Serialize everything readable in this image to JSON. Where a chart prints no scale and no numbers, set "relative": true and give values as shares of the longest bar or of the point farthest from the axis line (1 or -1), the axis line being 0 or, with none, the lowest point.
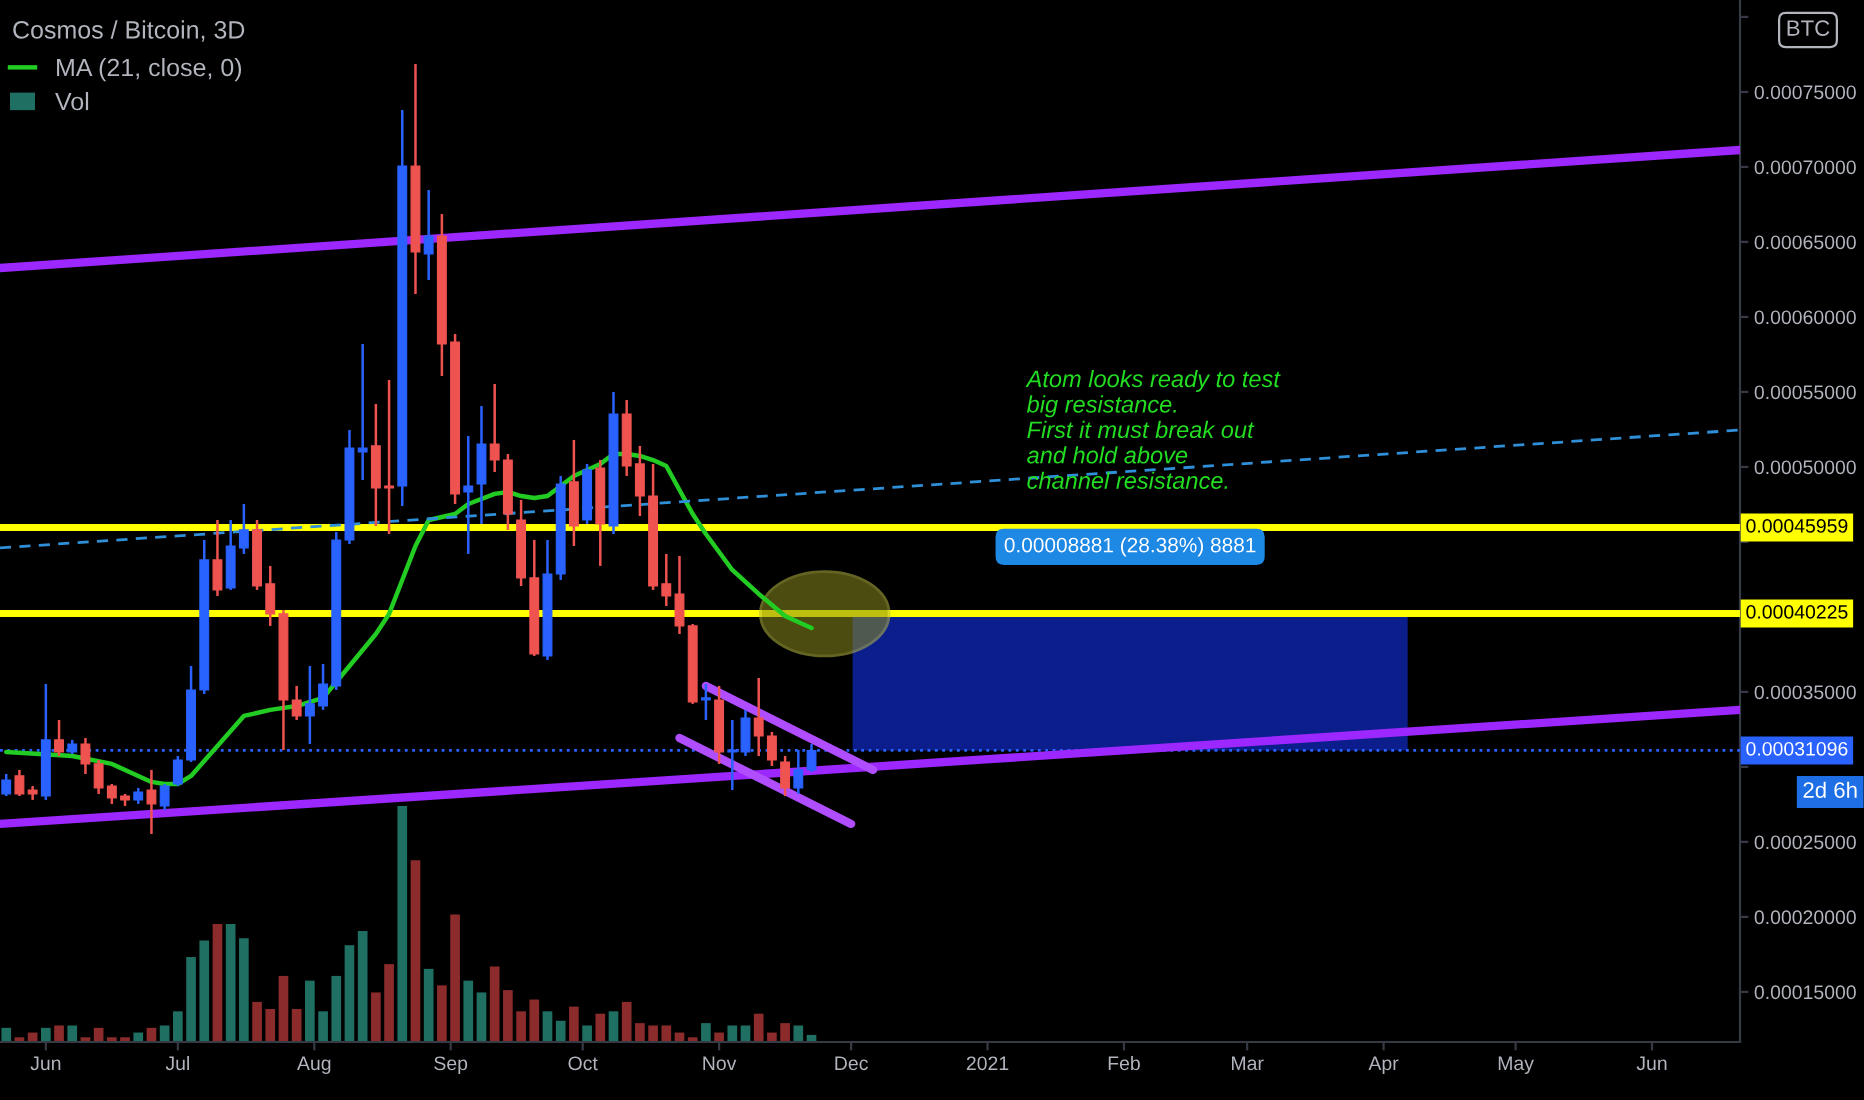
{
  "chart_data": [
    {
      "type": "candlestick",
      "title": "Cosmos / Bitcoin, 3D",
      "x": [
        "2020-05-23",
        "2020-05-26",
        "2020-05-29",
        "2020-06-01",
        "2020-06-04",
        "2020-06-07",
        "2020-06-10",
        "2020-06-13",
        "2020-06-16",
        "2020-06-19",
        "2020-06-22",
        "2020-06-25",
        "2020-06-28",
        "2020-07-01",
        "2020-07-04",
        "2020-07-07",
        "2020-07-10",
        "2020-07-13",
        "2020-07-16",
        "2020-07-19",
        "2020-07-22",
        "2020-07-25",
        "2020-07-28",
        "2020-07-31",
        "2020-08-03",
        "2020-08-06",
        "2020-08-09",
        "2020-08-12",
        "2020-08-15",
        "2020-08-18",
        "2020-08-21",
        "2020-08-24",
        "2020-08-27",
        "2020-08-30",
        "2020-09-02",
        "2020-09-05",
        "2020-09-08",
        "2020-09-11",
        "2020-09-14",
        "2020-09-17",
        "2020-09-20",
        "2020-09-23",
        "2020-09-26",
        "2020-09-29",
        "2020-10-02",
        "2020-10-05",
        "2020-10-08",
        "2020-10-11",
        "2020-10-14",
        "2020-10-17",
        "2020-10-20",
        "2020-10-23",
        "2020-10-26",
        "2020-10-29",
        "2020-11-01",
        "2020-11-04",
        "2020-11-07",
        "2020-11-10",
        "2020-11-13",
        "2020-11-16",
        "2020-11-19",
        "2020-11-22"
      ],
      "ohlc": [
        [
          0.000282,
          0.0002953,
          0.0002806,
          0.0002913
        ],
        [
          0.000294,
          0.000298,
          0.0002806,
          0.000282
        ],
        [
          0.0002846,
          0.0002873,
          0.000278,
          0.000282
        ],
        [
          0.0002806,
          0.0003553,
          0.000278,
          0.000318
        ],
        [
          0.000318,
          0.0003313,
          0.0003073,
          0.00031
        ],
        [
          0.00031,
          0.000318,
          0.0003086,
          0.0003153
        ],
        [
          0.0003153,
          0.0003193,
          0.0002953,
          0.000302
        ],
        [
          0.000302,
          0.0003046,
          0.000282,
          0.000286
        ],
        [
          0.0002873,
          0.0002886,
          0.0002753,
          0.0002793
        ],
        [
          0.0002806,
          0.000282,
          0.000274,
          0.000278
        ],
        [
          0.000278,
          0.000286,
          0.0002753,
          0.0002833
        ],
        [
          0.0002846,
          0.000298,
          0.0002553,
          0.0002753
        ],
        [
          0.000274,
          0.0002886,
          0.0002713,
          0.0002873
        ],
        [
          0.0002886,
          0.0003073,
          0.0002873,
          0.0003046
        ],
        [
          0.0003046,
          0.0003673,
          0.0003033,
          0.0003513
        ],
        [
          0.0003513,
          0.0004513,
          0.0003486,
          0.000438
        ],
        [
          0.000438,
          0.0004646,
          0.000414,
          0.000418
        ],
        [
          0.0004193,
          0.0004646,
          0.000418,
          0.0004473
        ],
        [
          0.000446,
          0.0004753,
          0.000442,
          0.000458
        ],
        [
          0.000458,
          0.0004646,
          0.000418,
          0.0004206
        ],
        [
          0.000422,
          0.000434,
          0.000394,
          0.000402
        ],
        [
          0.000402,
          0.0004046,
          0.0003113,
          0.0003446
        ],
        [
          0.0003446,
          0.000354,
          0.0003313,
          0.000334
        ],
        [
          0.000334,
          0.0003673,
          0.0003153,
          0.000342
        ],
        [
          0.0003406,
          0.0003686,
          0.000338,
          0.0003553
        ],
        [
          0.000354,
          0.0004566,
          0.0003513,
          0.0004513
        ],
        [
          0.0004513,
          0.0005246,
          0.0004486,
          0.0005126
        ],
        [
          0.00051,
          0.000582,
          0.0004913,
          0.0005126
        ],
        [
          0.000514,
          0.000542,
          0.0004606,
          0.000486
        ],
        [
          0.0004873,
          0.000558,
          0.0004553,
          0.000486
        ],
        [
          0.0004873,
          0.000738,
          0.000474,
          0.0007006
        ],
        [
          0.0007006,
          0.0007686,
          0.0006153,
          0.0006433
        ],
        [
          0.000642,
          0.0006846,
          0.0006246,
          0.000654
        ],
        [
          0.000654,
          0.0006686,
          0.0005606,
          0.000582
        ],
        [
          0.0005833,
          0.0005886,
          0.0004753,
          0.000482
        ],
        [
          0.0004833,
          0.0005206,
          0.000442,
          0.0004873
        ],
        [
          0.0004886,
          0.0005406,
          0.000462,
          0.0005153
        ],
        [
          0.0005153,
          0.0005553,
          0.0004966,
          0.0005046
        ],
        [
          0.0005046,
          0.0005086,
          0.000458,
          0.0004686
        ],
        [
          0.0004646,
          0.000478,
          0.0004206,
          0.000426
        ],
        [
          0.000426,
          0.0004513,
          0.000374,
          0.0003753
        ],
        [
          0.000374,
          0.0004513,
          0.0003713,
          0.0004286
        ],
        [
          0.0004286,
          0.000494,
          0.0004246,
          0.0004886
        ],
        [
          0.00049,
          0.000518,
          0.0004473,
          0.0004606
        ],
        [
          0.0004646,
          0.000502,
          0.000462,
          0.000498
        ],
        [
          0.0004993,
          0.0005046,
          0.000434,
          0.000462
        ],
        [
          0.0004606,
          0.00055,
          0.0004553,
          0.0005353
        ],
        [
          0.0005353,
          0.0005446,
          0.000494,
          0.0005006
        ],
        [
          0.000502,
          0.000514,
          0.0004673,
          0.0004806
        ],
        [
          0.0004806,
          0.000502,
          0.000418,
          0.0004206
        ],
        [
          0.000422,
          0.000442,
          0.0004073,
          0.000414
        ],
        [
          0.0004153,
          0.0004406,
          0.0003886,
          0.000394
        ],
        [
          0.000394,
          0.0003953,
          0.000342,
          0.0003433
        ],
        [
          0.0003446,
          0.0003553,
          0.0003313,
          0.000346
        ],
        [
          0.0003446,
          0.000354,
          0.000302,
          0.00031
        ],
        [
          0.00031,
          0.0003313,
          0.0002846,
          0.0003113
        ],
        [
          0.00031,
          0.000338,
          0.0003073,
          0.0003326
        ],
        [
          0.0003326,
          0.0003593,
          0.0003073,
          0.0003206
        ],
        [
          0.0003206,
          0.0003233,
          0.0003006,
          0.0003046
        ],
        [
          0.0003033,
          0.0003073,
          0.0002806,
          0.000286
        ],
        [
          0.000286,
          0.0003113,
          0.000282,
          0.000298
        ],
        [
          0.000298,
          0.0003153,
          0.0002966,
          0.00031096
        ]
      ],
      "colors": [
        "#2962ff",
        "#ef5350",
        "#ef5350",
        "#2962ff",
        "#ef5350",
        "#2962ff",
        "#ef5350",
        "#ef5350",
        "#ef5350",
        "#ef5350",
        "#2962ff",
        "#ef5350",
        "#2962ff",
        "#2962ff",
        "#2962ff",
        "#2962ff",
        "#ef5350",
        "#2962ff",
        "#2962ff",
        "#ef5350",
        "#ef5350",
        "#ef5350",
        "#ef5350",
        "#2962ff",
        "#2962ff",
        "#2962ff",
        "#2962ff",
        "#2962ff",
        "#ef5350",
        "#ef5350",
        "#2962ff",
        "#ef5350",
        "#2962ff",
        "#ef5350",
        "#ef5350",
        "#2962ff",
        "#2962ff",
        "#ef5350",
        "#ef5350",
        "#ef5350",
        "#ef5350",
        "#2962ff",
        "#2962ff",
        "#ef5350",
        "#2962ff",
        "#ef5350",
        "#2962ff",
        "#ef5350",
        "#ef5350",
        "#ef5350",
        "#ef5350",
        "#ef5350",
        "#ef5350",
        "#2962ff",
        "#ef5350",
        "#2962ff",
        "#2962ff",
        "#ef5350",
        "#ef5350",
        "#ef5350",
        "#2962ff",
        "#2962ff"
      ],
      "series": [
        {
          "name": "MA (21, close, 0)",
          "type": "line",
          "color": "#22cc22",
          "x": [
            "2020-05-23",
            "2020-06-07",
            "2020-06-16",
            "2020-06-25",
            "2020-06-28",
            "2020-07-01",
            "2020-07-04",
            "2020-07-10",
            "2020-07-16",
            "2020-07-22",
            "2020-07-28",
            "2020-08-03",
            "2020-08-09",
            "2020-08-15",
            "2020-08-18",
            "2020-08-21",
            "2020-08-24",
            "2020-08-27",
            "2020-09-02",
            "2020-09-05",
            "2020-09-11",
            "2020-09-14",
            "2020-09-17",
            "2020-09-20",
            "2020-09-23",
            "2020-09-26",
            "2020-09-29",
            "2020-10-02",
            "2020-10-05",
            "2020-10-08",
            "2020-10-11",
            "2020-10-14",
            "2020-10-17",
            "2020-10-20",
            "2020-10-23",
            "2020-10-26",
            "2020-10-29",
            "2020-11-04",
            "2020-11-10",
            "2020-11-16",
            "2020-11-22"
          ],
          "values": [
            0.00031,
            0.0003073,
            0.000302,
            0.00029,
            0.0002886,
            0.0002886,
            0.000294,
            0.000314,
            0.000334,
            0.000338,
            0.0003406,
            0.000346,
            0.0003673,
            0.0003886,
            0.000402,
            0.0004246,
            0.0004473,
            0.0004646,
            0.0004686,
            0.0004753,
            0.000482,
            0.0004833,
            0.0004806,
            0.0004793,
            0.0004806,
            0.0004873,
            0.000494,
            0.000498,
            0.000502,
            0.0005086,
            0.0005086,
            0.0005073,
            0.0005046,
            0.0005006,
            0.0004846,
            0.0004686,
            0.0004553,
            0.0004313,
            0.0004153,
            0.0004006,
            0.0003926
          ]
        },
        {
          "type": "line",
          "color": "#9c27ff",
          "x": [
            "2020-05-21T14:00",
            "2021-06-21"
          ],
          "values": [
            0.0006326,
            0.0007113
          ]
        },
        {
          "type": "line",
          "color": "#9c27ff",
          "x": [
            "2020-05-21T14:00",
            "2021-06-21"
          ],
          "values": [
            0.000262,
            0.000338
          ]
        },
        {
          "type": "line",
          "color": "#2f8fd8",
          "line_style": "dashed",
          "x": [
            "2020-05-21T14:00",
            "2021-06-21"
          ],
          "values": [
            0.000446,
            0.0005246
          ]
        },
        {
          "type": "line",
          "color": "#b04dff",
          "x": [
            "2020-10-29",
            "2020-12-06"
          ],
          "values": [
            0.000354,
            0.000298
          ]
        },
        {
          "type": "line",
          "color": "#b04dff",
          "x": [
            "2020-10-23",
            "2020-12-01"
          ],
          "values": [
            0.0003193,
            0.000262
          ]
        }
      ],
      "xlim": [
        "2020-05-21T14:00",
        "2021-06-21"
      ],
      "ylim": [
        0.0001166,
        0.0008113
      ],
      "xticks": [
        {
          "value": "2020-06-01",
          "label": "Jun"
        },
        {
          "value": "2020-07-01",
          "label": "Jul"
        },
        {
          "value": "2020-08-01",
          "label": "Aug"
        },
        {
          "value": "2020-09-01",
          "label": "Sep"
        },
        {
          "value": "2020-10-01",
          "label": "Oct"
        },
        {
          "value": "2020-11-01",
          "label": "Nov"
        },
        {
          "value": "2020-12-01",
          "label": "Dec"
        },
        {
          "value": "2021-01-01",
          "label": "2021"
        },
        {
          "value": "2021-02-01",
          "label": "Feb"
        },
        {
          "value": "2021-03-01",
          "label": "Mar"
        },
        {
          "value": "2021-04-01",
          "label": "Apr"
        },
        {
          "value": "2021-05-01",
          "label": "May"
        },
        {
          "value": "2021-06-01",
          "label": "Jun"
        }
      ],
      "yticks": [
        {
          "value": 0.00015,
          "label": "0.00015000"
        },
        {
          "value": 0.0002,
          "label": "0.00020000"
        },
        {
          "value": 0.00025,
          "label": "0.00025000"
        },
        {
          "value": 0.0003,
          "label": null
        },
        {
          "value": 0.00035,
          "label": "0.00035000"
        },
        {
          "value": 0.0004,
          "label": null
        },
        {
          "value": 0.00045,
          "label": null
        },
        {
          "value": 0.0005,
          "label": "0.00050000"
        },
        {
          "value": 0.00055,
          "label": "0.00055000"
        },
        {
          "value": 0.0006,
          "label": "0.00060000"
        },
        {
          "value": 0.00065,
          "label": "0.00065000"
        },
        {
          "value": 0.0007,
          "label": "0.00070000"
        },
        {
          "value": 0.00075,
          "label": "0.00075000"
        },
        {
          "value": 0.0008,
          "label": null
        }
      ],
      "ref_lines": [
        {
          "axis": "y",
          "value": 0.00045959,
          "label": "0.00045959",
          "color": "#ffff00"
        },
        {
          "axis": "y",
          "value": 0.00040225,
          "label": "0.00040225",
          "color": "#ffff00"
        },
        {
          "axis": "y",
          "value": 0.00031096,
          "label": "0.00031096",
          "color": "#2962ff",
          "line_style": "dotted"
        }
      ],
      "bands": [
        {
          "axis": "y",
          "from": 0.00031096,
          "to": 0.00040225,
          "label": "0.00008881 (28.38%) 8881",
          "color": "#0b1e8c"
        }
      ],
      "annotations": [
        "Atom looks ready to test\nbig resistance.\nFirst it must break out\nand hold above\nchannel resistance.",
        "BTC",
        "2d 6h"
      ],
      "legend": "top left"
    },
    {
      "type": "bar",
      "relative": true,
      "tick_labels": false,
      "legend": "top left",
      "x": [
        "2020-05-23",
        "2020-05-26",
        "2020-05-29",
        "2020-06-01",
        "2020-06-04",
        "2020-06-07",
        "2020-06-10",
        "2020-06-13",
        "2020-06-16",
        "2020-06-19",
        "2020-06-22",
        "2020-06-25",
        "2020-06-28",
        "2020-07-01",
        "2020-07-04",
        "2020-07-07",
        "2020-07-10",
        "2020-07-13",
        "2020-07-16",
        "2020-07-19",
        "2020-07-22",
        "2020-07-25",
        "2020-07-28",
        "2020-07-31",
        "2020-08-03",
        "2020-08-06",
        "2020-08-09",
        "2020-08-12",
        "2020-08-15",
        "2020-08-18",
        "2020-08-21",
        "2020-08-24",
        "2020-08-27",
        "2020-08-30",
        "2020-09-02",
        "2020-09-05",
        "2020-09-08",
        "2020-09-11",
        "2020-09-14",
        "2020-09-17",
        "2020-09-20",
        "2020-09-23",
        "2020-09-26",
        "2020-09-29",
        "2020-10-02",
        "2020-10-05",
        "2020-10-08",
        "2020-10-11",
        "2020-10-14",
        "2020-10-17",
        "2020-10-20",
        "2020-10-23",
        "2020-10-26",
        "2020-10-29",
        "2020-11-01",
        "2020-11-04",
        "2020-11-07",
        "2020-11-10",
        "2020-11-13",
        "2020-11-16",
        "2020-11-19",
        "2020-11-22"
      ],
      "xlim": [
        "2020-05-21T14:00",
        "2021-06-21"
      ],
      "series": [
        {
          "name": "Vol",
          "color": "#1f6f63",
          "values": [
            0.06,
            0.02,
            0.04,
            0.06,
            0.07,
            0.07,
            0.02,
            0.06,
            0.02,
            0.02,
            0.04,
            0.06,
            0.07,
            0.13,
            0.36,
            0.43,
            0.5,
            0.5,
            0.44,
            0.17,
            0.14,
            0.28,
            0.14,
            0.26,
            0.13,
            0.28,
            0.41,
            0.47,
            0.21,
            0.33,
            1,
            0.77,
            0.31,
            0.24,
            0.54,
            0.26,
            0.21,
            0.32,
            0.22,
            0.13,
            0.18,
            0.13,
            0.09,
            0.15,
            0.07,
            0.12,
            0.13,
            0.17,
            0.08,
            0.07,
            0.07,
            0.04,
            0.02,
            0.08,
            0.04,
            0.07,
            0.07,
            0.12,
            0.04,
            0.08,
            0.07,
            0.03
          ],
          "colors": [
            "#1f6f63",
            "#8b2b2b",
            "#8b2b2b",
            "#1f6f63",
            "#8b2b2b",
            "#1f6f63",
            "#8b2b2b",
            "#8b2b2b",
            "#8b2b2b",
            "#8b2b2b",
            "#1f6f63",
            "#8b2b2b",
            "#1f6f63",
            "#1f6f63",
            "#1f6f63",
            "#1f6f63",
            "#8b2b2b",
            "#1f6f63",
            "#1f6f63",
            "#8b2b2b",
            "#8b2b2b",
            "#8b2b2b",
            "#8b2b2b",
            "#1f6f63",
            "#1f6f63",
            "#1f6f63",
            "#1f6f63",
            "#1f6f63",
            "#8b2b2b",
            "#8b2b2b",
            "#1f6f63",
            "#8b2b2b",
            "#1f6f63",
            "#8b2b2b",
            "#8b2b2b",
            "#1f6f63",
            "#1f6f63",
            "#8b2b2b",
            "#8b2b2b",
            "#8b2b2b",
            "#8b2b2b",
            "#1f6f63",
            "#1f6f63",
            "#8b2b2b",
            "#1f6f63",
            "#8b2b2b",
            "#1f6f63",
            "#8b2b2b",
            "#8b2b2b",
            "#8b2b2b",
            "#8b2b2b",
            "#8b2b2b",
            "#8b2b2b",
            "#1f6f63",
            "#8b2b2b",
            "#1f6f63",
            "#1f6f63",
            "#8b2b2b",
            "#8b2b2b",
            "#8b2b2b",
            "#1f6f63",
            "#1f6f63"
          ]
        }
      ]
    }
  ]
}
